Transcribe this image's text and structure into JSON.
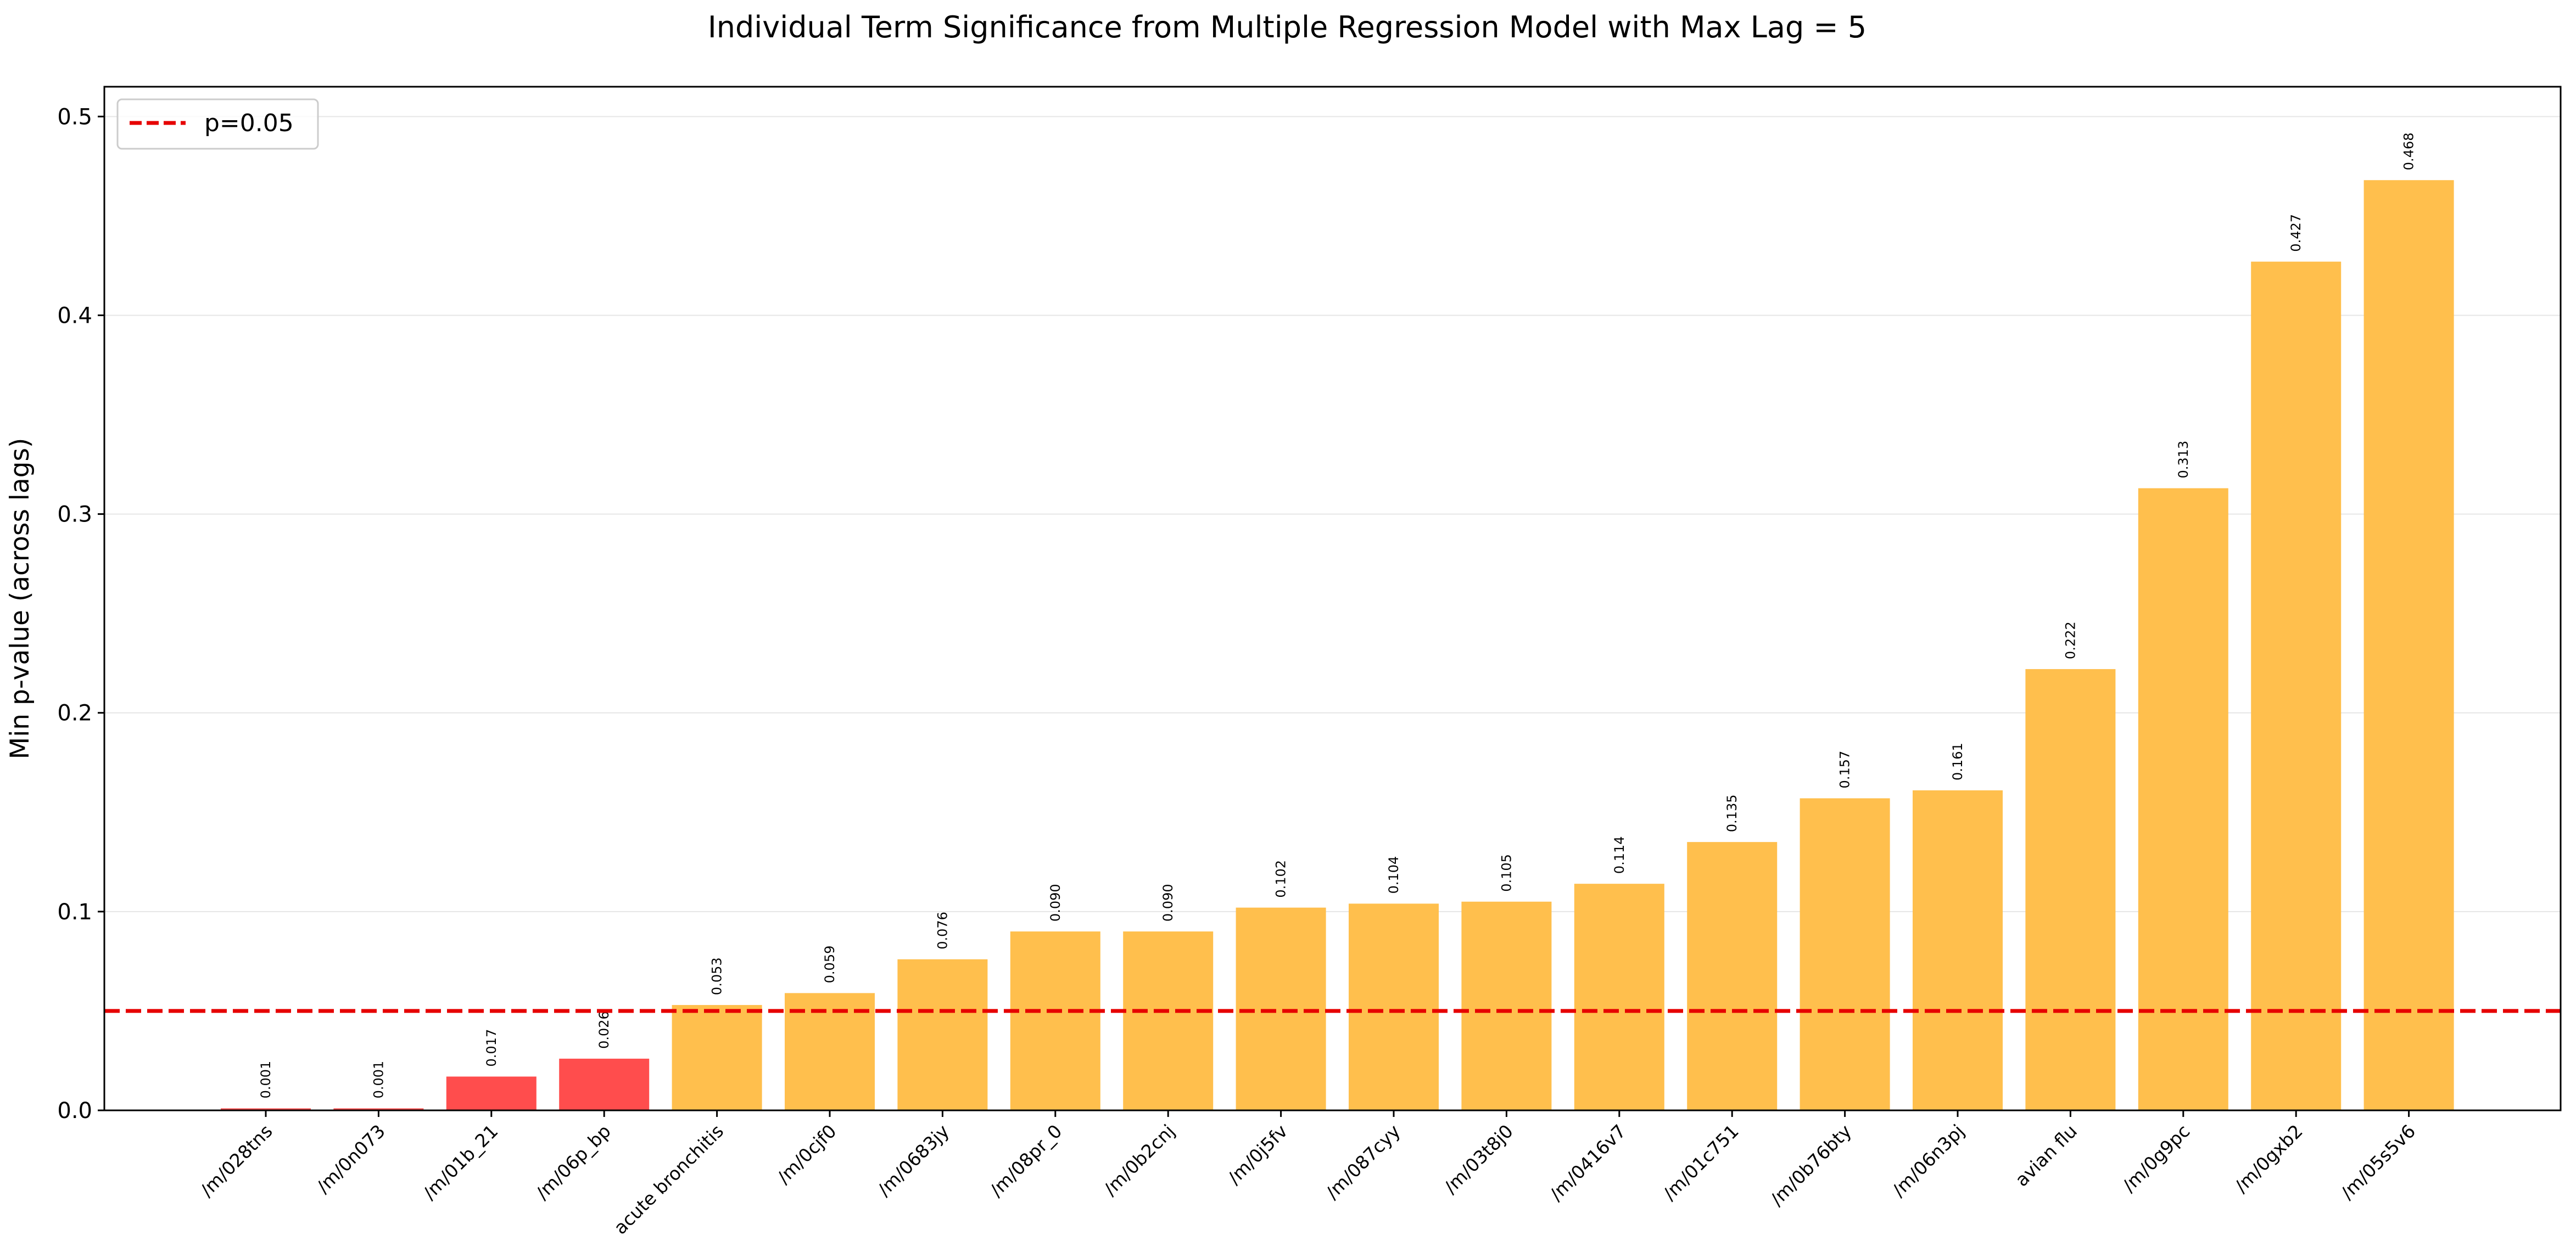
{
  "chart_data": {
    "type": "bar",
    "title": "Individual Term Significance from Multiple Regression Model with Max Lag = 5",
    "xlabel": "",
    "ylabel": "Min p-value (across lags)",
    "ylim": [
      0,
      0.515
    ],
    "yticks": [
      0.0,
      0.1,
      0.2,
      0.3,
      0.4,
      0.5
    ],
    "ytick_labels": [
      "0.0",
      "0.1",
      "0.2",
      "0.3",
      "0.4",
      "0.5"
    ],
    "grid": "y",
    "categories": [
      "/m/028tns",
      "/m/0n073",
      "/m/01b_21",
      "/m/06p_bp",
      "acute bronchitis",
      "/m/0cjf0",
      "/m/0683jy",
      "/m/08pr_0",
      "/m/0b2cnj",
      "/m/0j5fv",
      "/m/087cyy",
      "/m/03t8j0",
      "/m/0416v7",
      "/m/01c751",
      "/m/0b76bty",
      "/m/06n3pj",
      "avian flu",
      "/m/0g9pc",
      "/m/0gxb2",
      "/m/05s5v6"
    ],
    "values": [
      0.001,
      0.001,
      0.017,
      0.026,
      0.053,
      0.059,
      0.076,
      0.09,
      0.09,
      0.102,
      0.104,
      0.105,
      0.114,
      0.135,
      0.157,
      0.161,
      0.222,
      0.313,
      0.427,
      0.468
    ],
    "value_labels": [
      "0.001",
      "0.001",
      "0.017",
      "0.026",
      "0.053",
      "0.059",
      "0.076",
      "0.090",
      "0.090",
      "0.102",
      "0.104",
      "0.105",
      "0.114",
      "0.135",
      "0.157",
      "0.161",
      "0.222",
      "0.313",
      "0.427",
      "0.468"
    ],
    "colors": {
      "significant": "#ff4d4d",
      "not_significant": "#ffbf4d",
      "threshold_line": "#e60000",
      "grid": "#e6e6e6"
    },
    "threshold": {
      "value": 0.05,
      "label": "p=0.05"
    },
    "legend": {
      "placement": "top-left",
      "entries": [
        "p=0.05"
      ]
    }
  }
}
